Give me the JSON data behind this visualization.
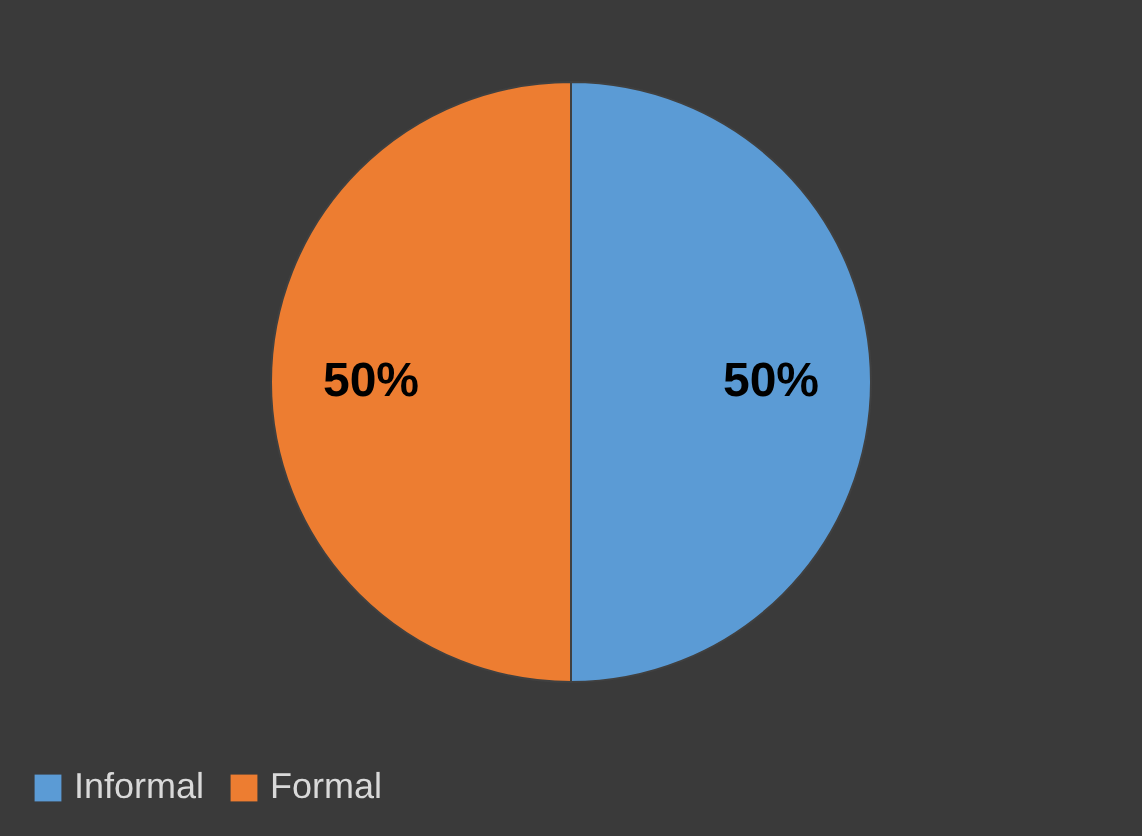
{
  "chart_data": {
    "type": "pie",
    "categories": [
      "Informal",
      "Formal"
    ],
    "values": [
      50,
      50
    ],
    "colors": [
      "#5b9bd5",
      "#ed7d31"
    ],
    "value_labels": [
      "50%",
      "50%"
    ],
    "legend": "bottom"
  }
}
